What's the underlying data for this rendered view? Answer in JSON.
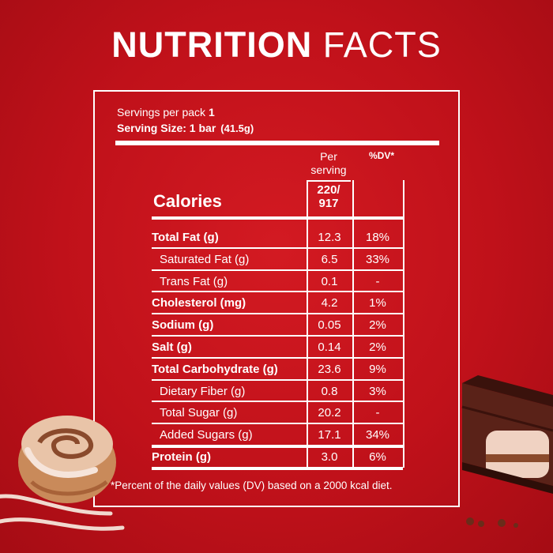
{
  "title": {
    "bold": "NUTRITION",
    "regular": "FACTS"
  },
  "servings": {
    "label": "Servings per pack",
    "value": "1"
  },
  "serving_size": {
    "label": "Serving Size: 1 bar",
    "amount": "(41.5g)"
  },
  "headers": {
    "per_line1": "Per",
    "per_line2": "serving",
    "dv": "%DV*"
  },
  "calories": {
    "label": "Calories",
    "line1": "220/",
    "line2": "917"
  },
  "rows": [
    {
      "label": "Total Fat (g)",
      "value": "12.3",
      "dv": "18%",
      "bold": true
    },
    {
      "label": "Saturated Fat (g)",
      "value": "6.5",
      "dv": "33%",
      "bold": false
    },
    {
      "label": "Trans Fat (g)",
      "value": "0.1",
      "dv": "-",
      "bold": false
    },
    {
      "label": "Cholesterol (mg)",
      "value": "4.2",
      "dv": "1%",
      "bold": true
    },
    {
      "label": "Sodium (g)",
      "value": "0.05",
      "dv": "2%",
      "bold": true
    },
    {
      "label": "Salt (g)",
      "value": "0.14",
      "dv": "2%",
      "bold": true
    },
    {
      "label": "Total Carbohydrate (g)",
      "value": "23.6",
      "dv": "9%",
      "bold": true
    },
    {
      "label": "Dietary Fiber (g)",
      "value": "0.8",
      "dv": "3%",
      "bold": false
    },
    {
      "label": "Total Sugar (g)",
      "value": "20.2",
      "dv": "-",
      "bold": false
    },
    {
      "label": "Added Sugars (g)",
      "value": "17.1",
      "dv": "34%",
      "bold": false
    },
    {
      "label": "Protein (g)",
      "value": "3.0",
      "dv": "6%",
      "bold": true
    }
  ],
  "footnote": "*Percent of the daily values (DV) based on a 2000 kcal diet.",
  "colors": {
    "background": "#c0111a",
    "text": "#ffffff",
    "chocolate": "#4a1c14",
    "icing": "#f1d9cf"
  }
}
